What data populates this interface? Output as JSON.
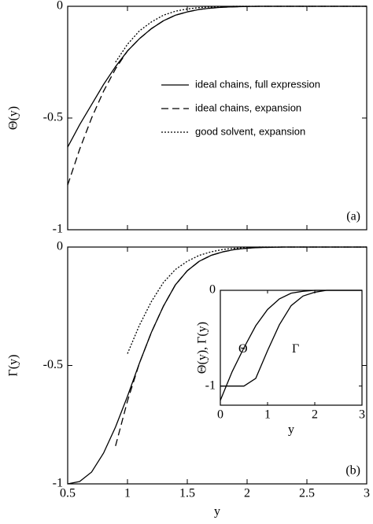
{
  "chart_data": [
    {
      "type": "line",
      "y_label": "Θ(y)",
      "annotation": "(a)",
      "x": [
        0.5,
        0.6,
        0.7,
        0.8,
        0.9,
        1.0,
        1.1,
        1.2,
        1.3,
        1.4,
        1.5,
        1.6,
        1.7,
        1.8,
        1.9,
        2.0,
        2.1,
        2.2,
        2.3,
        2.4,
        2.5,
        3
      ],
      "xlim": [
        0.5,
        3
      ],
      "ylim": [
        -1,
        0
      ],
      "xticks": [
        0.5,
        1,
        1.5,
        2,
        2.5,
        3
      ],
      "yticks": [
        0,
        -0.5,
        -1
      ],
      "xtick_labels": false,
      "legend": "right",
      "grid": false,
      "series": [
        {
          "name": "ideal chains, full expression",
          "color": "#000000",
          "dash": "solid",
          "values": [
            -0.63,
            -0.53,
            -0.44,
            -0.35,
            -0.27,
            -0.2,
            -0.145,
            -0.1,
            -0.065,
            -0.04,
            -0.025,
            -0.014,
            -0.008,
            -0.004,
            -0.002,
            -0.001,
            0,
            0,
            0,
            0,
            0,
            0
          ]
        },
        {
          "name": "ideal chains, expansion",
          "color": "#000000",
          "dash": "dashed",
          "values": [
            -0.8,
            -0.64,
            -0.5,
            -0.38,
            -0.28,
            -0.2,
            -0.145,
            -0.1,
            -0.065,
            -0.04,
            -0.025,
            -0.014,
            -0.008,
            -0.004,
            -0.002,
            -0.001,
            0,
            0,
            0,
            0,
            0,
            0
          ]
        },
        {
          "name": "good solvent, expansion",
          "color": "#000000",
          "dash": "dotted",
          "values": [
            null,
            null,
            null,
            null,
            -0.25,
            -0.17,
            -0.11,
            -0.07,
            -0.04,
            -0.022,
            -0.012,
            -0.006,
            -0.003,
            -0.001,
            0,
            0,
            0,
            0,
            0,
            0,
            0,
            0
          ]
        }
      ]
    },
    {
      "type": "line",
      "y_label": "Γ(y)",
      "x_label": "y",
      "annotation": "(b)",
      "x": [
        0.5,
        0.6,
        0.7,
        0.8,
        0.9,
        1.0,
        1.1,
        1.2,
        1.3,
        1.4,
        1.5,
        1.6,
        1.7,
        1.8,
        1.9,
        2.0,
        2.1,
        2.2,
        2.3,
        2.4,
        2.5,
        3
      ],
      "xlim": [
        0.5,
        3
      ],
      "ylim": [
        -1,
        0
      ],
      "xticks": [
        0.5,
        1,
        1.5,
        2,
        2.5,
        3
      ],
      "yticks": [
        0,
        -0.5,
        -1
      ],
      "xtick_labels": true,
      "grid": false,
      "series": [
        {
          "color": "#000000",
          "dash": "solid",
          "values": [
            -1,
            -0.99,
            -0.95,
            -0.87,
            -0.76,
            -0.63,
            -0.49,
            -0.36,
            -0.25,
            -0.16,
            -0.1,
            -0.06,
            -0.035,
            -0.02,
            -0.01,
            -0.005,
            -0.002,
            -0.001,
            0,
            0,
            0,
            0
          ]
        },
        {
          "color": "#000000",
          "dash": "dashed",
          "values": [
            null,
            null,
            null,
            null,
            -0.84,
            -0.65,
            -0.49,
            -0.36,
            -0.25,
            -0.16,
            -0.1,
            -0.06,
            -0.035,
            -0.02,
            -0.01,
            -0.005,
            -0.002,
            -0.001,
            0,
            0,
            0,
            0
          ]
        },
        {
          "color": "#000000",
          "dash": "dotted",
          "values": [
            null,
            null,
            null,
            null,
            null,
            -0.45,
            -0.33,
            -0.23,
            -0.15,
            -0.095,
            -0.06,
            -0.035,
            -0.02,
            -0.01,
            -0.005,
            -0.002,
            0,
            0,
            0,
            0,
            0,
            0
          ]
        }
      ]
    },
    {
      "type": "line",
      "y_label": "Θ(y), Γ(y)",
      "x_label": "y",
      "x": [
        0,
        0.25,
        0.5,
        0.75,
        1,
        1.25,
        1.5,
        1.75,
        2,
        2.25,
        2.5,
        3
      ],
      "xlim": [
        0,
        3
      ],
      "ylim": [
        -1.2,
        0
      ],
      "xticks": [
        0,
        1,
        2,
        3
      ],
      "yticks": [
        0,
        -1
      ],
      "xtick_labels": true,
      "legend": "inline",
      "grid": false,
      "series": [
        {
          "name": "Θ",
          "color": "#000000",
          "dash": "solid",
          "values": [
            -1.15,
            -0.85,
            -0.6,
            -0.37,
            -0.2,
            -0.09,
            -0.03,
            -0.01,
            0,
            0,
            0,
            0
          ]
        },
        {
          "name": "Γ",
          "color": "#000000",
          "dash": "solid",
          "values": [
            -1,
            -1,
            -1,
            -0.92,
            -0.63,
            -0.36,
            -0.16,
            -0.06,
            -0.02,
            0,
            0,
            0
          ]
        }
      ]
    }
  ]
}
